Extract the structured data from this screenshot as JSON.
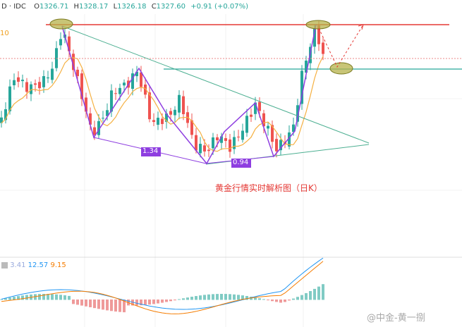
{
  "header": {
    "symbol": "D · IDC",
    "open_label": "O",
    "open": "1326.71",
    "high_label": "H",
    "high": "1328.17",
    "low_label": "L",
    "low": "1326.18",
    "close_label": "C",
    "close": "1327.60",
    "change": "+0.91 (+0.07%)",
    "ma_label": "10"
  },
  "annotations": {
    "wave_a": "1.34",
    "wave_b": "0.94",
    "caption": "黄金行情实时解析图（日K）"
  },
  "macd": {
    "hist": "3.41",
    "macd": "12.57",
    "signal": "9.15"
  },
  "watermark": "@中金-黄一捌"
}
